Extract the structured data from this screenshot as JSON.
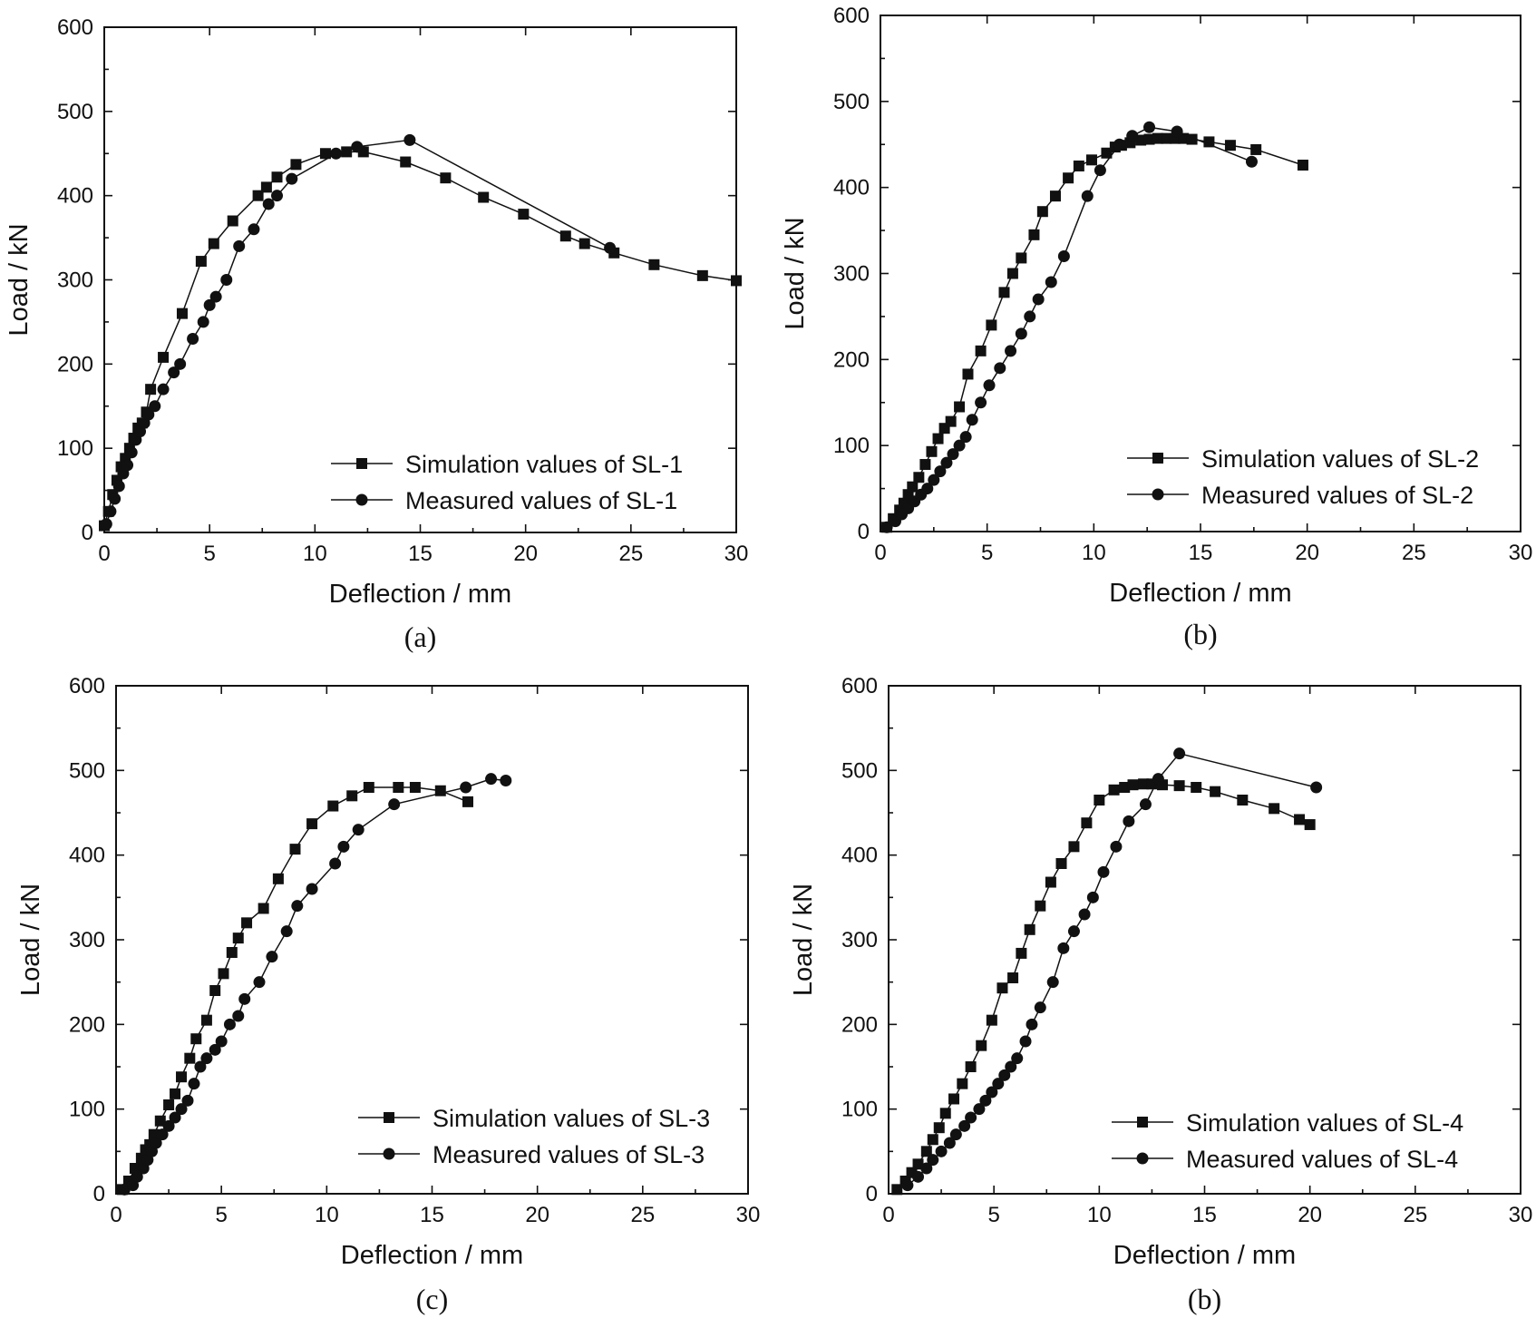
{
  "chart_data": [
    {
      "type": "line",
      "panel_label": "(a)",
      "xlabel": "Deflection / mm",
      "ylabel": "Load / kN",
      "xlim": [
        0,
        30
      ],
      "ylim": [
        0,
        600
      ],
      "xticks": [
        0,
        5,
        10,
        15,
        20,
        25,
        30
      ],
      "yticks": [
        0,
        100,
        200,
        300,
        400,
        500,
        600
      ],
      "legend_position": "bottom-right",
      "series": [
        {
          "name": "Simulation values of SL-1",
          "marker": "square",
          "x": [
            0,
            0.2,
            0.4,
            0.6,
            0.8,
            1.0,
            1.2,
            1.4,
            1.6,
            1.8,
            2.0,
            2.2,
            2.8,
            3.7,
            4.6,
            5.2,
            6.1,
            7.3,
            7.7,
            8.2,
            9.1,
            10.5,
            11.5,
            12.3,
            14.3,
            16.2,
            18.0,
            19.9,
            21.9,
            22.8,
            24.2,
            26.1,
            28.4,
            30.0
          ],
          "y": [
            8,
            25,
            45,
            62,
            78,
            88,
            100,
            112,
            124,
            130,
            143,
            170,
            208,
            260,
            322,
            343,
            370,
            400,
            410,
            422,
            437,
            450,
            452,
            452,
            440,
            421,
            398,
            378,
            352,
            343,
            332,
            318,
            305,
            299
          ]
        },
        {
          "name": "Measured values of SL-1",
          "marker": "circle",
          "x": [
            0.1,
            0.3,
            0.5,
            0.7,
            0.9,
            1.1,
            1.3,
            1.5,
            1.7,
            1.9,
            2.1,
            2.4,
            2.8,
            3.3,
            3.6,
            4.2,
            4.7,
            5.0,
            5.3,
            5.8,
            6.4,
            7.1,
            7.8,
            8.2,
            8.9,
            11.0,
            12.0,
            14.5,
            24.0
          ],
          "y": [
            10,
            25,
            40,
            55,
            70,
            80,
            95,
            110,
            120,
            130,
            140,
            150,
            170,
            190,
            200,
            230,
            250,
            270,
            280,
            300,
            340,
            360,
            390,
            400,
            420,
            450,
            458,
            466,
            338
          ]
        }
      ]
    },
    {
      "type": "line",
      "panel_label": "(b)",
      "xlabel": "Deflection / mm",
      "ylabel": "Load / kN",
      "xlim": [
        0,
        30
      ],
      "ylim": [
        0,
        600
      ],
      "xticks": [
        0,
        5,
        10,
        15,
        20,
        25,
        30
      ],
      "yticks": [
        0,
        100,
        200,
        300,
        400,
        500,
        600
      ],
      "legend_position": "bottom-right",
      "series": [
        {
          "name": "Simulation values of SL-2",
          "marker": "square",
          "x": [
            0.3,
            0.6,
            0.9,
            1.1,
            1.3,
            1.5,
            1.8,
            2.1,
            2.4,
            2.7,
            3.0,
            3.3,
            3.7,
            4.1,
            4.7,
            5.2,
            5.8,
            6.2,
            6.6,
            7.2,
            7.6,
            8.2,
            8.8,
            9.3,
            9.9,
            10.6,
            11.0,
            11.3,
            11.7,
            12.2,
            12.6,
            13.0,
            13.4,
            13.8,
            14.2,
            14.6,
            15.4,
            16.4,
            17.6,
            19.8
          ],
          "y": [
            5,
            15,
            25,
            33,
            43,
            52,
            63,
            78,
            93,
            108,
            120,
            128,
            145,
            183,
            210,
            240,
            278,
            300,
            318,
            345,
            372,
            390,
            411,
            425,
            432,
            440,
            447,
            449,
            452,
            455,
            456,
            457,
            457,
            457,
            457,
            456,
            453,
            449,
            444,
            426
          ]
        },
        {
          "name": "Measured values of SL-2",
          "marker": "circle",
          "x": [
            0.3,
            0.7,
            1.0,
            1.3,
            1.6,
            1.9,
            2.2,
            2.5,
            2.8,
            3.1,
            3.4,
            3.7,
            4.0,
            4.3,
            4.7,
            5.1,
            5.6,
            6.1,
            6.6,
            7.0,
            7.4,
            8.0,
            8.6,
            9.7,
            10.3,
            11.2,
            11.8,
            12.6,
            13.9,
            17.4
          ],
          "y": [
            5,
            12,
            20,
            27,
            35,
            43,
            50,
            60,
            70,
            80,
            90,
            100,
            110,
            130,
            150,
            170,
            190,
            210,
            230,
            250,
            270,
            290,
            320,
            390,
            420,
            450,
            460,
            470,
            465,
            430
          ]
        }
      ]
    },
    {
      "type": "line",
      "panel_label": "(c)",
      "xlabel": "Deflection / mm",
      "ylabel": "Load / kN",
      "xlim": [
        0,
        30
      ],
      "ylim": [
        0,
        600
      ],
      "xticks": [
        0,
        5,
        10,
        15,
        20,
        25,
        30
      ],
      "yticks": [
        0,
        100,
        200,
        300,
        400,
        500,
        600
      ],
      "legend_position": "bottom-right",
      "series": [
        {
          "name": "Simulation values of SL-3",
          "marker": "square",
          "x": [
            0.3,
            0.6,
            0.9,
            1.2,
            1.4,
            1.6,
            1.8,
            2.1,
            2.5,
            2.8,
            3.1,
            3.5,
            3.8,
            4.3,
            4.7,
            5.1,
            5.5,
            5.8,
            6.2,
            7.0,
            7.7,
            8.5,
            9.3,
            10.3,
            11.2,
            12.0,
            13.4,
            14.2,
            15.4,
            16.7
          ],
          "y": [
            5,
            15,
            30,
            42,
            52,
            58,
            70,
            86,
            105,
            118,
            138,
            160,
            183,
            205,
            240,
            260,
            285,
            302,
            320,
            337,
            372,
            407,
            437,
            458,
            470,
            480,
            480,
            480,
            476,
            463
          ]
        },
        {
          "name": "Measured values of SL-3",
          "marker": "circle",
          "x": [
            0.4,
            0.8,
            1.0,
            1.3,
            1.5,
            1.7,
            1.9,
            2.2,
            2.5,
            2.8,
            3.1,
            3.4,
            3.7,
            4.0,
            4.3,
            4.7,
            5.0,
            5.4,
            5.8,
            6.1,
            6.8,
            7.4,
            8.1,
            8.6,
            9.3,
            10.4,
            10.8,
            11.5,
            13.2,
            16.6,
            17.8,
            18.5
          ],
          "y": [
            5,
            10,
            20,
            30,
            40,
            50,
            60,
            70,
            80,
            90,
            100,
            110,
            130,
            150,
            160,
            170,
            180,
            200,
            210,
            230,
            250,
            280,
            310,
            340,
            360,
            390,
            410,
            430,
            460,
            480,
            490,
            488
          ]
        }
      ]
    },
    {
      "type": "line",
      "panel_label": "(b)",
      "xlabel": "Deflection / mm",
      "ylabel": "Load / kN",
      "xlim": [
        0,
        30
      ],
      "ylim": [
        0,
        600
      ],
      "xticks": [
        0,
        5,
        10,
        15,
        20,
        25,
        30
      ],
      "yticks": [
        0,
        100,
        200,
        300,
        400,
        500,
        600
      ],
      "legend_position": "bottom-right",
      "series": [
        {
          "name": "Simulation values of SL-4",
          "marker": "square",
          "x": [
            0.4,
            0.8,
            1.1,
            1.4,
            1.8,
            2.1,
            2.4,
            2.7,
            3.1,
            3.5,
            3.9,
            4.4,
            4.9,
            5.4,
            5.9,
            6.3,
            6.7,
            7.2,
            7.7,
            8.2,
            8.8,
            9.4,
            10.0,
            10.7,
            11.2,
            11.6,
            12.1,
            12.5,
            13.0,
            13.8,
            14.6,
            15.5,
            16.8,
            18.3,
            19.5,
            20.0
          ],
          "y": [
            5,
            15,
            25,
            35,
            50,
            64,
            78,
            95,
            112,
            130,
            150,
            175,
            205,
            243,
            255,
            284,
            312,
            340,
            368,
            390,
            410,
            438,
            465,
            477,
            480,
            483,
            484,
            484,
            483,
            482,
            480,
            475,
            465,
            455,
            442,
            436
          ]
        },
        {
          "name": "Measured values of SL-4",
          "marker": "circle",
          "x": [
            0.9,
            1.4,
            1.8,
            2.1,
            2.5,
            2.9,
            3.2,
            3.6,
            3.9,
            4.3,
            4.6,
            4.9,
            5.2,
            5.5,
            5.8,
            6.1,
            6.5,
            6.8,
            7.2,
            7.8,
            8.3,
            8.8,
            9.3,
            9.7,
            10.2,
            10.8,
            11.4,
            12.2,
            12.8,
            13.8,
            20.3
          ],
          "y": [
            10,
            20,
            30,
            40,
            50,
            60,
            70,
            80,
            90,
            100,
            110,
            120,
            130,
            140,
            150,
            160,
            180,
            200,
            220,
            250,
            290,
            310,
            330,
            350,
            380,
            410,
            440,
            460,
            490,
            520,
            480
          ]
        }
      ]
    }
  ]
}
